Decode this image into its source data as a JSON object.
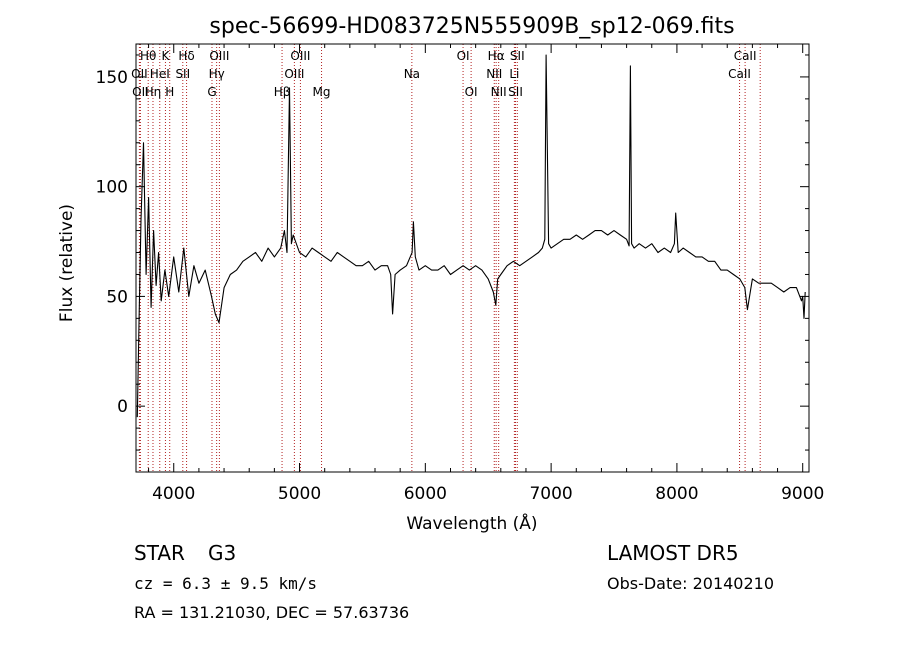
{
  "title": "spec-56699-HD083725N555909B_sp12-069.fits",
  "chart_data": {
    "type": "line",
    "title": "spec-56699-HD083725N555909B_sp12-069.fits",
    "xlabel": "Wavelength (Å)",
    "ylabel": "Flux (relative)",
    "xlim": [
      3700,
      9050
    ],
    "ylim": [
      -30,
      165
    ],
    "xticks": [
      4000,
      5000,
      6000,
      7000,
      8000,
      9000
    ],
    "yticks": [
      0,
      50,
      100,
      150
    ],
    "series": [
      {
        "name": "",
        "x": [
          3710,
          3725,
          3740,
          3760,
          3780,
          3800,
          3820,
          3840,
          3860,
          3880,
          3900,
          3930,
          3960,
          4000,
          4040,
          4080,
          4120,
          4160,
          4200,
          4250,
          4300,
          4330,
          4360,
          4400,
          4450,
          4500,
          4550,
          4600,
          4650,
          4700,
          4750,
          4800,
          4850,
          4880,
          4900,
          4920,
          4935,
          4950,
          5000,
          5050,
          5100,
          5150,
          5200,
          5250,
          5300,
          5350,
          5400,
          5450,
          5500,
          5550,
          5600,
          5650,
          5700,
          5725,
          5740,
          5760,
          5800,
          5850,
          5895,
          5905,
          5920,
          5950,
          6000,
          6050,
          6100,
          6150,
          6200,
          6250,
          6300,
          6350,
          6400,
          6450,
          6500,
          6540,
          6560,
          6575,
          6600,
          6650,
          6700,
          6750,
          6800,
          6850,
          6900,
          6930,
          6950,
          6960,
          6980,
          7000,
          7050,
          7100,
          7150,
          7200,
          7250,
          7300,
          7350,
          7400,
          7450,
          7500,
          7550,
          7600,
          7620,
          7630,
          7640,
          7660,
          7700,
          7750,
          7800,
          7850,
          7900,
          7950,
          7980,
          7990,
          8010,
          8050,
          8100,
          8150,
          8200,
          8250,
          8300,
          8350,
          8400,
          8450,
          8500,
          8540,
          8560,
          8600,
          8650,
          8700,
          8750,
          8800,
          8850,
          8900,
          8950,
          8990,
          9000,
          9010,
          9020
        ],
        "y": [
          -5,
          40,
          85,
          120,
          60,
          95,
          45,
          80,
          55,
          70,
          48,
          62,
          50,
          68,
          52,
          72,
          50,
          64,
          56,
          62,
          50,
          42,
          38,
          54,
          60,
          62,
          66,
          68,
          70,
          66,
          72,
          68,
          72,
          80,
          70,
          145,
          74,
          78,
          70,
          68,
          72,
          70,
          68,
          66,
          70,
          68,
          66,
          64,
          64,
          66,
          62,
          64,
          64,
          60,
          42,
          60,
          62,
          64,
          70,
          84,
          68,
          62,
          64,
          62,
          62,
          64,
          60,
          62,
          64,
          62,
          64,
          62,
          58,
          52,
          46,
          58,
          60,
          64,
          66,
          64,
          66,
          68,
          70,
          72,
          76,
          160,
          74,
          72,
          74,
          76,
          76,
          78,
          76,
          78,
          80,
          80,
          78,
          80,
          78,
          76,
          73,
          155,
          74,
          72,
          74,
          72,
          74,
          70,
          72,
          70,
          74,
          88,
          70,
          72,
          70,
          68,
          68,
          66,
          66,
          62,
          62,
          60,
          58,
          54,
          44,
          58,
          56,
          56,
          56,
          54,
          52,
          54,
          54,
          48,
          50,
          40,
          52
        ]
      }
    ],
    "spectral_lines": [
      {
        "label": "Hθ",
        "wavelength": 3797
      },
      {
        "label": "K",
        "wavelength": 3934
      },
      {
        "label": "Hδ",
        "wavelength": 4102
      },
      {
        "label": "OIII",
        "wavelength": 4363
      },
      {
        "label": "OIII",
        "wavelength": 5007
      },
      {
        "label": "OI",
        "wavelength": 6300
      },
      {
        "label": "Hα",
        "wavelength": 6563
      },
      {
        "label": "SII",
        "wavelength": 6731
      },
      {
        "label": "CaII",
        "wavelength": 8542
      },
      {
        "label": "OII",
        "wavelength": 3727
      },
      {
        "label": "HeI",
        "wavelength": 3889
      },
      {
        "label": "SII",
        "wavelength": 4072
      },
      {
        "label": "Hγ",
        "wavelength": 4341
      },
      {
        "label": "OIII",
        "wavelength": 4959
      },
      {
        "label": "Na",
        "wavelength": 5893
      },
      {
        "label": "NII",
        "wavelength": 6548
      },
      {
        "label": "Li",
        "wavelength": 6708
      },
      {
        "label": "CaII",
        "wavelength": 8498
      },
      {
        "label": "OII",
        "wavelength": 3735
      },
      {
        "label": "Hη",
        "wavelength": 3835
      },
      {
        "label": "H",
        "wavelength": 3968
      },
      {
        "label": "G",
        "wavelength": 4304
      },
      {
        "label": "Hβ",
        "wavelength": 4861
      },
      {
        "label": "Mg",
        "wavelength": 5175
      },
      {
        "label": "OI",
        "wavelength": 6364
      },
      {
        "label": "NII",
        "wavelength": 6583
      },
      {
        "label": "SII",
        "wavelength": 6717
      },
      {
        "label": "CaII",
        "wavelength": 8662
      }
    ],
    "grid": false
  },
  "info": {
    "object_class": "STAR",
    "subclass": "G3",
    "survey": "LAMOST  DR5",
    "cz": "cz = 6.3 ± 9.5 km/s",
    "obs_date": "Obs-Date: 20140210",
    "coords": "RA = 131.21030, DEC =  57.63736"
  },
  "colors": {
    "spectrum": "#000000",
    "line_marker": "#b22222"
  }
}
